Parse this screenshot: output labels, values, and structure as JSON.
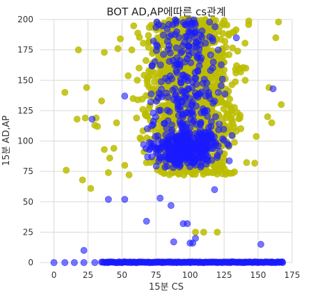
{
  "chart_data": {
    "type": "scatter",
    "title": "BOT AD,AP에따른 cs관계",
    "xlabel": "15분 CS",
    "ylabel": "15분 AD,AP",
    "xlim": [
      -10,
      175
    ],
    "ylim": [
      0,
      200
    ],
    "xticks": [
      "0",
      "25",
      "50",
      "75",
      "100",
      "125",
      "150",
      "175"
    ],
    "yticks": [
      "0",
      "25",
      "50",
      "75",
      "100",
      "125",
      "150",
      "175",
      "200"
    ],
    "grid": true,
    "legend": "none",
    "series": [
      {
        "color": "#bcbd00",
        "opacity": 0.85,
        "cluster": {
          "x_mean": 100,
          "x_sd": 22,
          "y_min": 72,
          "y_max": 200
        },
        "points": [
          [
            8,
            140
          ],
          [
            9,
            76
          ],
          [
            17,
            118
          ],
          [
            18,
            175
          ],
          [
            21,
            68
          ],
          [
            23,
            119
          ],
          [
            24,
            144
          ],
          [
            27,
            61
          ],
          [
            30,
            113
          ],
          [
            31,
            119
          ],
          [
            32,
            112
          ],
          [
            35,
            133
          ],
          [
            37,
            93
          ],
          [
            37,
            173
          ],
          [
            40,
            74
          ],
          [
            41,
            86
          ],
          [
            44,
            94
          ],
          [
            46,
            115
          ],
          [
            47,
            176
          ],
          [
            52,
            80
          ],
          [
            104,
            25
          ],
          [
            110,
            25
          ],
          [
            120,
            25
          ],
          [
            157,
            120
          ],
          [
            158,
            144
          ],
          [
            160,
            115
          ],
          [
            163,
            185
          ],
          [
            165,
            198
          ],
          [
            167,
            130
          ]
        ]
      },
      {
        "color": "#1a1aff",
        "opacity": 0.6,
        "cluster": {
          "x_mean": 97,
          "x_sd": 18,
          "y_min": 78,
          "y_max": 200
        },
        "points": [
          [
            0,
            0
          ],
          [
            8,
            0
          ],
          [
            15,
            0
          ],
          [
            22,
            0
          ],
          [
            30,
            0
          ],
          [
            40,
            0
          ],
          [
            50,
            0
          ],
          [
            60,
            0
          ],
          [
            70,
            0
          ],
          [
            80,
            0
          ],
          [
            90,
            0
          ],
          [
            100,
            0
          ],
          [
            110,
            0
          ],
          [
            120,
            0
          ],
          [
            130,
            0
          ],
          [
            140,
            0
          ],
          [
            150,
            0
          ],
          [
            160,
            0
          ],
          [
            168,
            0
          ],
          [
            22,
            10
          ],
          [
            28,
            118
          ],
          [
            40,
            52
          ],
          [
            52,
            52
          ],
          [
            52,
            137
          ],
          [
            68,
            34
          ],
          [
            78,
            53
          ],
          [
            86,
            47
          ],
          [
            88,
            17
          ],
          [
            95,
            32
          ],
          [
            98,
            32
          ],
          [
            100,
            16
          ],
          [
            102,
            16
          ],
          [
            104,
            20
          ],
          [
            108,
            80
          ],
          [
            118,
            60
          ],
          [
            152,
            15
          ],
          [
            161,
            143
          ]
        ]
      }
    ]
  }
}
